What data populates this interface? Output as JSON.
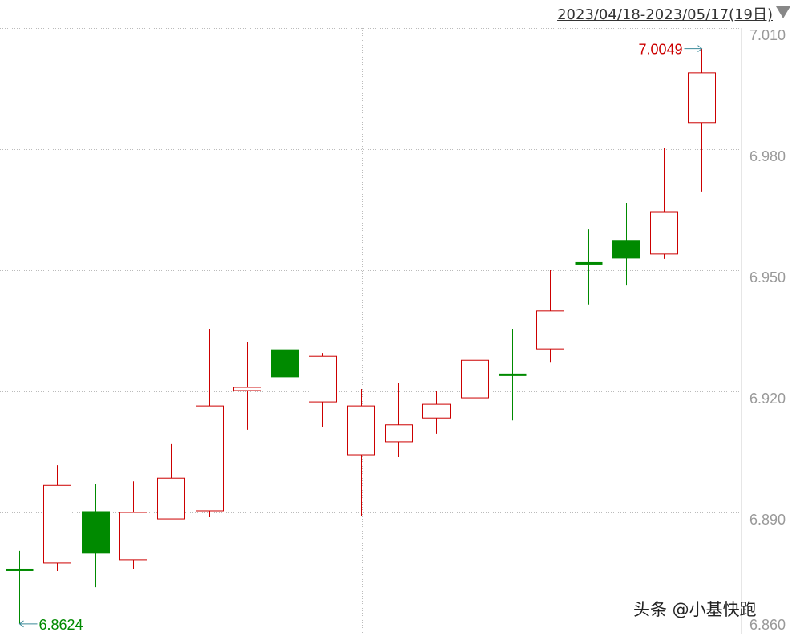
{
  "header": {
    "date_range": "2023/04/18-2023/05/17(19日)",
    "dropdown_icon": "triangle-down-icon"
  },
  "watermark": "头条 @小基快跑",
  "colors": {
    "up": "#cc0000",
    "down": "#008a00",
    "grid": "#bbbbbb",
    "axis_text": "#999999"
  },
  "chart_data": {
    "type": "candlestick",
    "ylim": [
      6.86,
      7.01
    ],
    "yticks": [
      "7.010",
      "6.980",
      "6.950",
      "6.920",
      "6.890",
      "6.860"
    ],
    "grid": true,
    "annotations": {
      "max": "7.0049",
      "min": "6.8624"
    },
    "candles": [
      {
        "o": 6.8757,
        "h": 6.8805,
        "l": 6.8624,
        "c": 6.8757
      },
      {
        "o": 6.8775,
        "h": 6.9017,
        "l": 6.8755,
        "c": 6.8967
      },
      {
        "o": 6.8902,
        "h": 6.8971,
        "l": 6.8715,
        "c": 6.8799
      },
      {
        "o": 6.8783,
        "h": 6.8977,
        "l": 6.8761,
        "c": 6.89
      },
      {
        "o": 6.8884,
        "h": 6.9071,
        "l": 6.8884,
        "c": 6.8985
      },
      {
        "o": 6.8904,
        "h": 6.9355,
        "l": 6.8888,
        "c": 6.9164
      },
      {
        "o": 6.9202,
        "h": 6.9323,
        "l": 6.9105,
        "c": 6.921
      },
      {
        "o": 6.9303,
        "h": 6.9337,
        "l": 6.9109,
        "c": 6.9236
      },
      {
        "o": 6.9174,
        "h": 6.9295,
        "l": 6.9111,
        "c": 6.9287
      },
      {
        "o": 6.9043,
        "h": 6.9206,
        "l": 6.8892,
        "c": 6.9164
      },
      {
        "o": 6.9075,
        "h": 6.922,
        "l": 6.9037,
        "c": 6.9117
      },
      {
        "o": 6.9134,
        "h": 6.92,
        "l": 6.9095,
        "c": 6.9168
      },
      {
        "o": 6.9184,
        "h": 6.9297,
        "l": 6.9164,
        "c": 6.9277
      },
      {
        "o": 6.924,
        "h": 6.9355,
        "l": 6.9128,
        "c": 6.924
      },
      {
        "o": 6.9305,
        "h": 6.95,
        "l": 6.9273,
        "c": 6.9399
      },
      {
        "o": 6.9516,
        "h": 6.9601,
        "l": 6.9415,
        "c": 6.9516
      },
      {
        "o": 6.9574,
        "h": 6.9667,
        "l": 6.9464,
        "c": 6.953
      },
      {
        "o": 6.954,
        "h": 6.9802,
        "l": 6.9528,
        "c": 6.9645
      },
      {
        "o": 6.9866,
        "h": 7.0049,
        "l": 6.9695,
        "c": 6.9989
      }
    ]
  }
}
